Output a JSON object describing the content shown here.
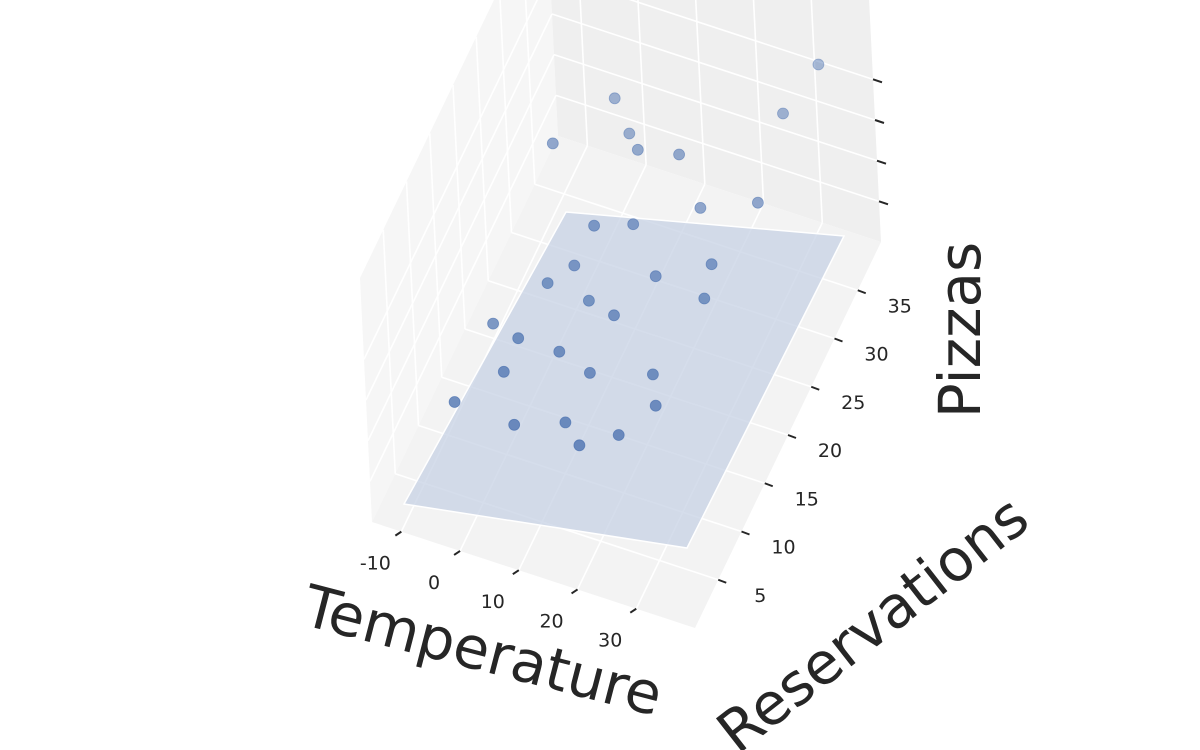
{
  "chart_data": {
    "type": "scatter",
    "title": "",
    "xlabel": "Temperature",
    "ylabel": "Reservations",
    "zlabel": "Pizzas",
    "xlim": [
      -15,
      40
    ],
    "ylim": [
      0,
      40
    ],
    "zlim": [
      0,
      60
    ],
    "x_ticks": [
      -10,
      0,
      10,
      20,
      30
    ],
    "y_ticks": [
      5,
      10,
      15,
      20,
      25,
      30,
      35
    ],
    "z_ticks": [
      10,
      20,
      30,
      40
    ],
    "z_tick_labels_shown": false,
    "grid": true,
    "marker_color": "#4C72B0",
    "plane_color": "#C5D0E3",
    "pane_colors": {
      "left": "#F6F6F6",
      "back": "#EFEFEF",
      "floor": "#F3F3F3"
    },
    "grid_color": "#FFFFFF",
    "points": [
      {
        "x": 0,
        "y": 22,
        "z": 48
      },
      {
        "x": 5,
        "y": 14,
        "z": 35
      },
      {
        "x": 8,
        "y": 28,
        "z": 40
      },
      {
        "x": 10,
        "y": 18,
        "z": 42
      },
      {
        "x": 3,
        "y": 10,
        "z": 30
      },
      {
        "x": 12,
        "y": 25,
        "z": 45
      },
      {
        "x": 18,
        "y": 12,
        "z": 38
      },
      {
        "x": 22,
        "y": 16,
        "z": 40
      },
      {
        "x": 15,
        "y": 20,
        "z": 40
      },
      {
        "x": 25,
        "y": 22,
        "z": 44
      },
      {
        "x": 28,
        "y": 8,
        "z": 30
      },
      {
        "x": 30,
        "y": 18,
        "z": 42
      },
      {
        "x": 20,
        "y": 24,
        "z": 50
      },
      {
        "x": 6,
        "y": 5,
        "z": 22
      },
      {
        "x": 2,
        "y": 8,
        "z": 26
      },
      {
        "x": 14,
        "y": 6,
        "z": 24
      },
      {
        "x": 18,
        "y": 4,
        "z": 25
      },
      {
        "x": 26,
        "y": 10,
        "z": 32
      },
      {
        "x": 32,
        "y": 14,
        "z": 44
      },
      {
        "x": 35,
        "y": 22,
        "z": 50
      },
      {
        "x": 10,
        "y": 10,
        "z": 30
      },
      {
        "x": 16,
        "y": 9,
        "z": 30
      },
      {
        "x": 24,
        "y": 5,
        "z": 28
      },
      {
        "x": 12,
        "y": 14,
        "z": 34
      },
      {
        "x": 8,
        "y": 16,
        "z": 36
      },
      {
        "x": 33,
        "y": 30,
        "z": 52
      },
      {
        "x": 36,
        "y": 34,
        "z": 56
      },
      {
        "x": -5,
        "y": 6,
        "z": 20
      },
      {
        "x": -3,
        "y": 12,
        "z": 26
      },
      {
        "x": 4,
        "y": 30,
        "z": 42
      }
    ]
  }
}
